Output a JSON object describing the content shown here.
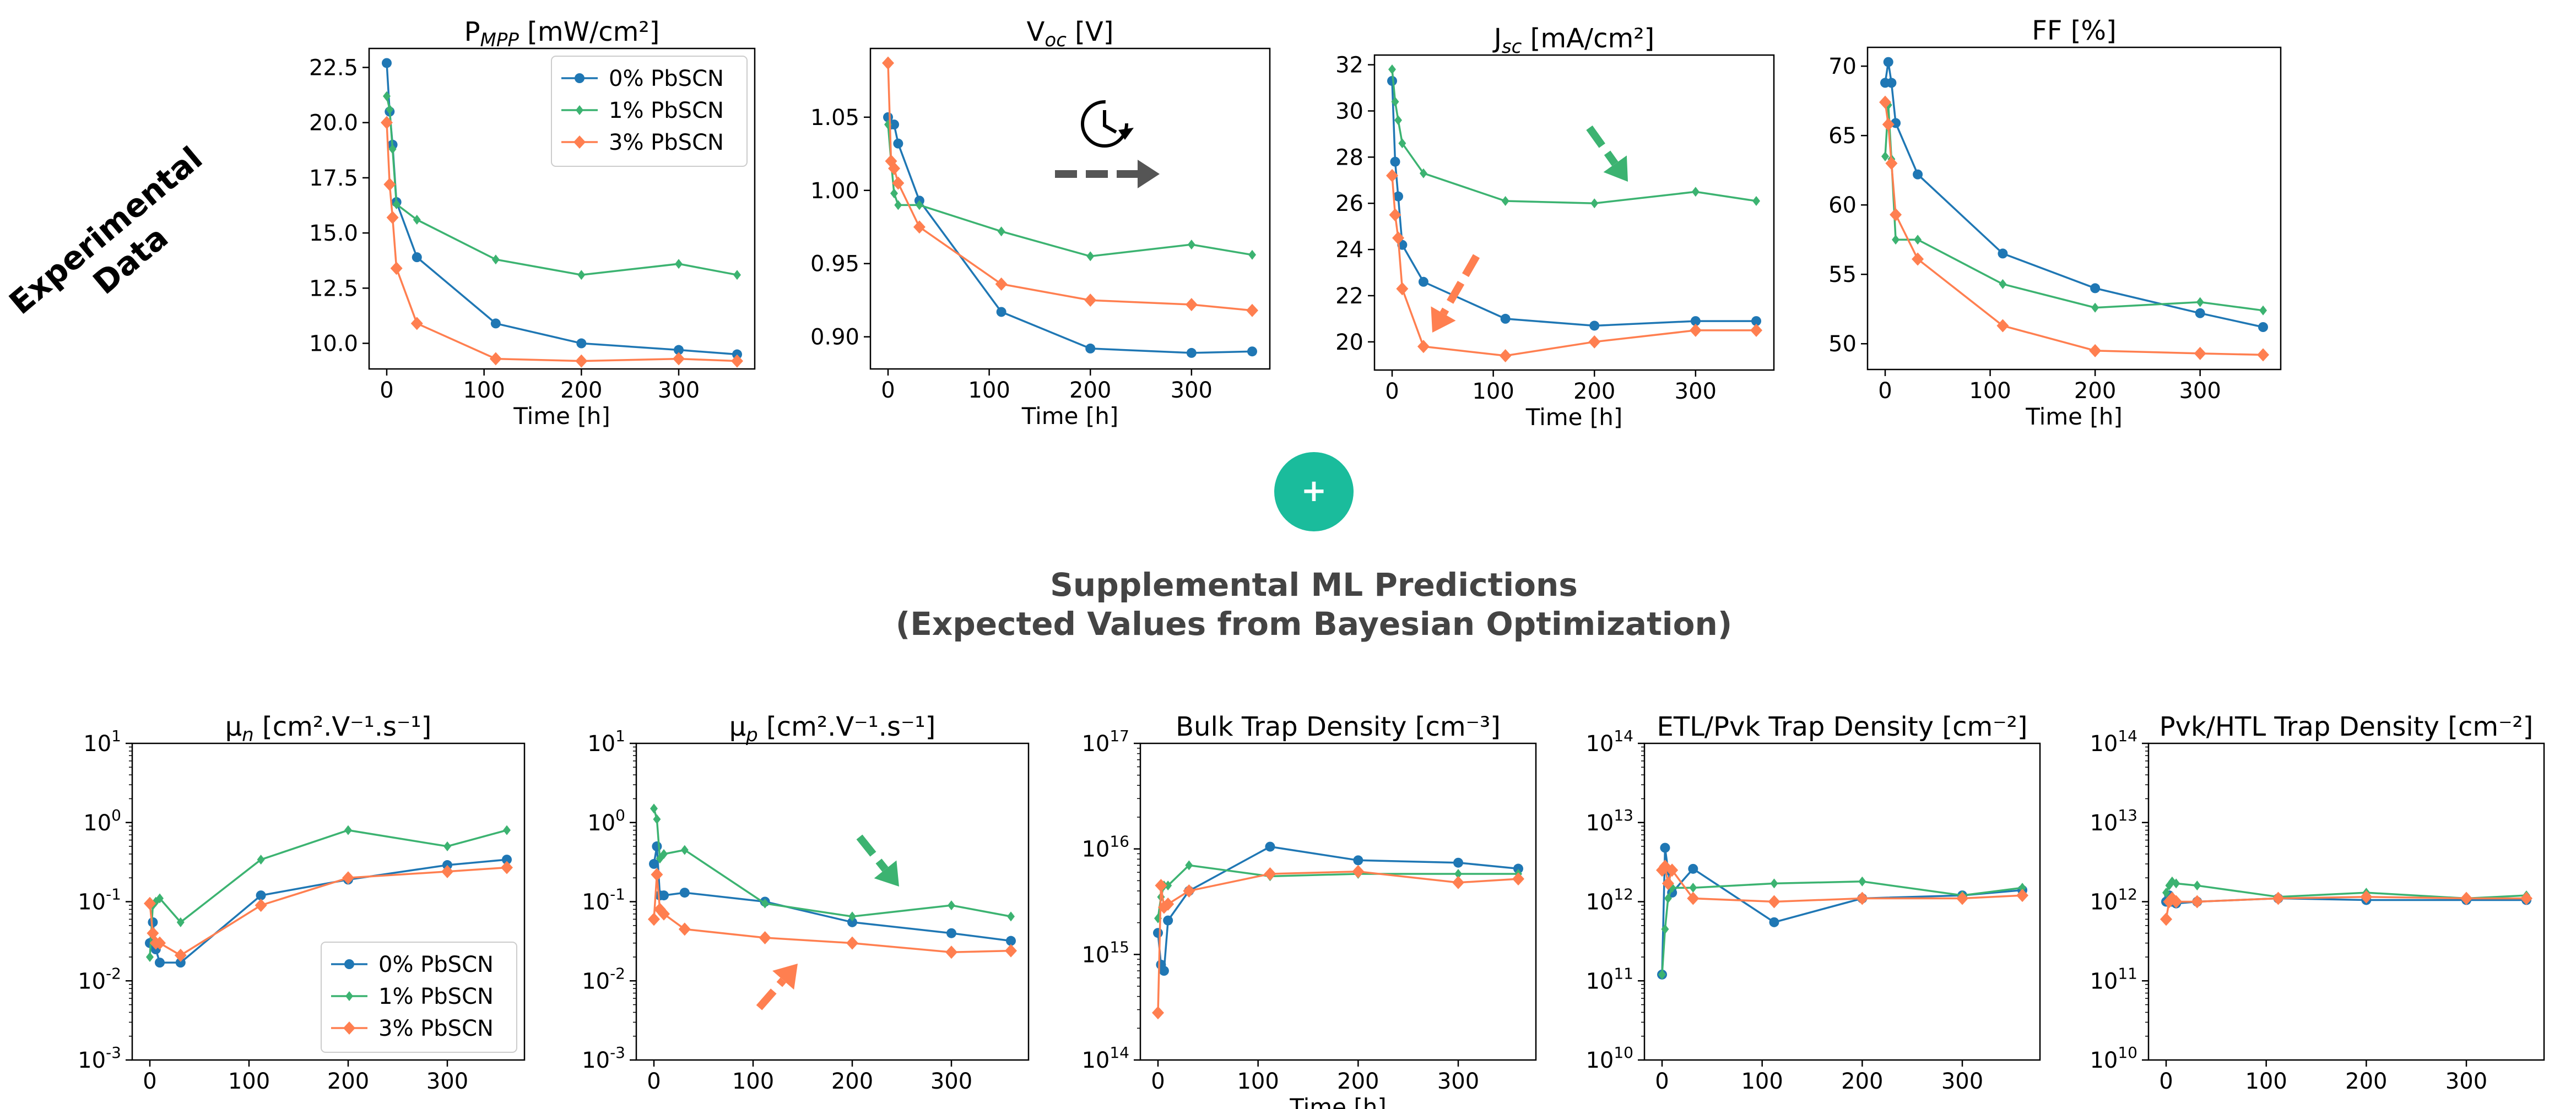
{
  "colors": {
    "s0": "#1f77b4",
    "s1": "#3cb371",
    "s2": "#ff7f50",
    "plus": "#1abc9c",
    "heading": "#444444"
  },
  "left_label": [
    "Experimental",
    "Data"
  ],
  "heading": {
    "line1": "Supplemental ML Predictions",
    "line2": "(Expected Values from Bayesian Optimization)"
  },
  "plus_symbol": "+",
  "legend": [
    "0% PbSCN",
    "1% PbSCN",
    "3% PbSCN"
  ],
  "icons": [
    "clock-icon",
    "dashed-arrow-right-icon",
    "trend-arrow-icon"
  ],
  "chart_data": [
    {
      "type": "line",
      "title": "P_MPP [mW/cm²]",
      "xlabel": "Time [h]",
      "ylabel": "",
      "xlim": [
        0,
        360
      ],
      "ylim": [
        9.5,
        22.7
      ],
      "yscale": "linear",
      "xticks": [
        0,
        100,
        200,
        300
      ],
      "yticks": [
        "10.0",
        "12.5",
        "15.0",
        "17.5",
        "20.0",
        "22.5"
      ],
      "legend_position": "upper right",
      "series": [
        {
          "name": "0% PbSCN",
          "x": [
            0,
            3,
            6,
            10,
            31,
            112,
            200,
            300,
            360
          ],
          "y": [
            22.7,
            20.5,
            19.0,
            16.4,
            13.9,
            10.9,
            10.0,
            9.7,
            9.5
          ]
        },
        {
          "name": "1% PbSCN",
          "x": [
            0,
            3,
            6,
            10,
            31,
            112,
            200,
            300,
            360
          ],
          "y": [
            21.2,
            20.6,
            18.8,
            16.3,
            15.6,
            13.8,
            13.1,
            13.6,
            13.1
          ]
        },
        {
          "name": "3% PbSCN",
          "x": [
            0,
            3,
            6,
            10,
            31,
            112,
            200,
            300,
            360
          ],
          "y": [
            20.0,
            17.2,
            15.7,
            13.4,
            10.9,
            9.3,
            9.2,
            9.3,
            9.2
          ]
        }
      ]
    },
    {
      "type": "line",
      "title": "V_oc [V]",
      "xlabel": "Time [h]",
      "ylabel": "",
      "xlim": [
        0,
        360
      ],
      "ylim": [
        0.888,
        1.087
      ],
      "yscale": "linear",
      "xticks": [
        0,
        100,
        200,
        300
      ],
      "yticks": [
        "0.90",
        "0.95",
        "1.00",
        "1.05"
      ],
      "series": [
        {
          "name": "0% PbSCN",
          "x": [
            0,
            3,
            6,
            10,
            31,
            112,
            200,
            300,
            360
          ],
          "y": [
            1.05,
            1.045,
            1.045,
            1.032,
            0.993,
            0.917,
            0.892,
            0.889,
            0.89
          ]
        },
        {
          "name": "1% PbSCN",
          "x": [
            0,
            3,
            6,
            10,
            31,
            112,
            200,
            300,
            360
          ],
          "y": [
            1.045,
            1.02,
            0.998,
            0.99,
            0.99,
            0.972,
            0.955,
            0.963,
            0.956
          ]
        },
        {
          "name": "3% PbSCN",
          "x": [
            0,
            3,
            6,
            10,
            31,
            112,
            200,
            300,
            360
          ],
          "y": [
            1.087,
            1.02,
            1.015,
            1.005,
            0.975,
            0.936,
            0.925,
            0.922,
            0.918
          ]
        }
      ]
    },
    {
      "type": "line",
      "title": "J_sc [mA/cm²]",
      "xlabel": "Time [h]",
      "ylabel": "",
      "xlim": [
        0,
        360
      ],
      "ylim": [
        19.4,
        31.8
      ],
      "yscale": "linear",
      "xticks": [
        0,
        100,
        200,
        300
      ],
      "yticks": [
        "20",
        "22",
        "24",
        "26",
        "28",
        "30",
        "32"
      ],
      "series": [
        {
          "name": "0% PbSCN",
          "x": [
            0,
            3,
            6,
            10,
            31,
            112,
            200,
            300,
            360
          ],
          "y": [
            31.3,
            27.8,
            26.3,
            24.2,
            22.6,
            21.0,
            20.7,
            20.9,
            20.9
          ]
        },
        {
          "name": "1% PbSCN",
          "x": [
            0,
            3,
            6,
            10,
            31,
            112,
            200,
            300,
            360
          ],
          "y": [
            31.8,
            30.4,
            29.6,
            28.6,
            27.3,
            26.1,
            26.0,
            26.5,
            26.1
          ]
        },
        {
          "name": "3% PbSCN",
          "x": [
            0,
            3,
            6,
            10,
            31,
            112,
            200,
            300,
            360
          ],
          "y": [
            27.2,
            25.5,
            24.5,
            22.3,
            19.8,
            19.4,
            20.0,
            20.5,
            20.5
          ]
        }
      ]
    },
    {
      "type": "line",
      "title": "FF [%]",
      "xlabel": "Time [h]",
      "ylabel": "",
      "xlim": [
        0,
        360
      ],
      "ylim": [
        49.2,
        70.3
      ],
      "yscale": "linear",
      "xticks": [
        0,
        100,
        200,
        300
      ],
      "yticks": [
        "50",
        "55",
        "60",
        "65",
        "70"
      ],
      "series": [
        {
          "name": "0% PbSCN",
          "x": [
            0,
            3,
            6,
            10,
            31,
            112,
            200,
            300,
            360
          ],
          "y": [
            68.8,
            70.3,
            68.8,
            65.9,
            62.2,
            56.5,
            54.0,
            52.2,
            51.2
          ]
        },
        {
          "name": "1% PbSCN",
          "x": [
            0,
            3,
            6,
            10,
            31,
            112,
            200,
            300,
            360
          ],
          "y": [
            63.5,
            67.2,
            63.3,
            57.5,
            57.5,
            54.3,
            52.6,
            53.0,
            52.4
          ]
        },
        {
          "name": "3% PbSCN",
          "x": [
            0,
            3,
            6,
            10,
            31,
            112,
            200,
            300,
            360
          ],
          "y": [
            67.4,
            65.8,
            63.0,
            59.3,
            56.1,
            51.3,
            49.5,
            49.3,
            49.2
          ]
        }
      ]
    },
    {
      "type": "line",
      "title": "μ_n [cm².V⁻¹.s⁻¹]",
      "xlabel": "",
      "ylabel": "",
      "xlim": [
        0,
        360
      ],
      "ylim": [
        0.001,
        10
      ],
      "yscale": "log",
      "xticks": [
        0,
        100,
        200,
        300
      ],
      "ytick_exponents": [
        1,
        0,
        -1,
        -2,
        -3
      ],
      "legend_position": "lower right",
      "series": [
        {
          "name": "0% PbSCN",
          "x": [
            0,
            3,
            6,
            10,
            31,
            112,
            200,
            300,
            360
          ],
          "y": [
            0.03,
            0.055,
            0.025,
            0.017,
            0.017,
            0.12,
            0.19,
            0.29,
            0.34
          ]
        },
        {
          "name": "1% PbSCN",
          "x": [
            0,
            3,
            6,
            10,
            31,
            112,
            200,
            300,
            360
          ],
          "y": [
            0.02,
            0.09,
            0.1,
            0.11,
            0.055,
            0.34,
            0.8,
            0.5,
            0.8
          ]
        },
        {
          "name": "3% PbSCN",
          "x": [
            0,
            3,
            6,
            10,
            31,
            112,
            200,
            300,
            360
          ],
          "y": [
            0.095,
            0.04,
            0.03,
            0.03,
            0.021,
            0.09,
            0.2,
            0.24,
            0.27
          ]
        }
      ]
    },
    {
      "type": "line",
      "title": "μ_p [cm².V⁻¹.s⁻¹]",
      "xlabel": "",
      "ylabel": "",
      "xlim": [
        0,
        360
      ],
      "ylim": [
        0.001,
        10
      ],
      "yscale": "log",
      "xticks": [
        0,
        100,
        200,
        300
      ],
      "ytick_exponents": [
        1,
        0,
        -1,
        -2,
        -3
      ],
      "series": [
        {
          "name": "0% PbSCN",
          "x": [
            0,
            3,
            6,
            10,
            31,
            112,
            200,
            300,
            360
          ],
          "y": [
            0.3,
            0.5,
            0.12,
            0.12,
            0.13,
            0.1,
            0.055,
            0.04,
            0.032
          ]
        },
        {
          "name": "1% PbSCN",
          "x": [
            0,
            3,
            6,
            10,
            31,
            112,
            200,
            300,
            360
          ],
          "y": [
            1.5,
            1.1,
            0.35,
            0.4,
            0.45,
            0.095,
            0.065,
            0.09,
            0.065
          ]
        },
        {
          "name": "3% PbSCN",
          "x": [
            0,
            3,
            6,
            10,
            31,
            112,
            200,
            300,
            360
          ],
          "y": [
            0.06,
            0.22,
            0.08,
            0.07,
            0.045,
            0.035,
            0.03,
            0.023,
            0.024
          ]
        }
      ]
    },
    {
      "type": "line",
      "title": "Bulk Trap Density [cm⁻³]",
      "xlabel": "Time [h]",
      "ylabel": "",
      "xlim": [
        0,
        360
      ],
      "ylim": [
        100000000000000.0,
        1e+17
      ],
      "yscale": "log",
      "xticks": [
        0,
        100,
        200,
        300
      ],
      "ytick_exponents": [
        17,
        16,
        15,
        14
      ],
      "series": [
        {
          "name": "0% PbSCN",
          "x": [
            0,
            3,
            6,
            10,
            31,
            112,
            200,
            300,
            360
          ],
          "y": [
            1600000000000000.0,
            800000000000000.0,
            700000000000000.0,
            2100000000000000.0,
            4000000000000000.0,
            1.05e+16,
            7800000000000000.0,
            7400000000000000.0,
            6500000000000000.0
          ]
        },
        {
          "name": "1% PbSCN",
          "x": [
            0,
            3,
            6,
            10,
            31,
            112,
            200,
            300,
            360
          ],
          "y": [
            2200000000000000.0,
            3500000000000000.0,
            4500000000000000.0,
            4500000000000000.0,
            7000000000000000.0,
            5500000000000000.0,
            5800000000000000.0,
            5800000000000000.0,
            5800000000000000.0
          ]
        },
        {
          "name": "3% PbSCN",
          "x": [
            0,
            3,
            6,
            10,
            31,
            112,
            200,
            300,
            360
          ],
          "y": [
            280000000000000.0,
            4500000000000000.0,
            2800000000000000.0,
            3000000000000000.0,
            4000000000000000.0,
            5800000000000000.0,
            6100000000000000.0,
            4800000000000000.0,
            5200000000000000.0
          ]
        }
      ]
    },
    {
      "type": "line",
      "title": "ETL/Pvk Trap Density [cm⁻²]",
      "xlabel": "",
      "ylabel": "",
      "xlim": [
        0,
        360
      ],
      "ylim": [
        10000000000.0,
        100000000000000.0
      ],
      "yscale": "log",
      "xticks": [
        0,
        100,
        200,
        300
      ],
      "ytick_exponents": [
        14,
        13,
        12,
        11,
        10
      ],
      "series": [
        {
          "name": "0% PbSCN",
          "x": [
            0,
            3,
            6,
            10,
            31,
            112,
            200,
            300,
            360
          ],
          "y": [
            120000000000.0,
            4800000000000.0,
            2500000000000.0,
            1300000000000.0,
            2600000000000.0,
            550000000000.0,
            1100000000000.0,
            1200000000000.0,
            1400000000000.0
          ]
        },
        {
          "name": "1% PbSCN",
          "x": [
            0,
            3,
            6,
            10,
            31,
            112,
            200,
            300,
            360
          ],
          "y": [
            120000000000.0,
            450000000000.0,
            1100000000000.0,
            1500000000000.0,
            1500000000000.0,
            1700000000000.0,
            1800000000000.0,
            1200000000000.0,
            1500000000000.0
          ]
        },
        {
          "name": "3% PbSCN",
          "x": [
            0,
            3,
            6,
            10,
            31,
            112,
            200,
            300,
            360
          ],
          "y": [
            2500000000000.0,
            2800000000000.0,
            1700000000000.0,
            2500000000000.0,
            1100000000000.0,
            1000000000000.0,
            1100000000000.0,
            1100000000000.0,
            1200000000000.0
          ]
        }
      ]
    },
    {
      "type": "line",
      "title": "Pvk/HTL Trap Density [cm⁻²]",
      "xlabel": "",
      "ylabel": "",
      "xlim": [
        0,
        360
      ],
      "ylim": [
        10000000000.0,
        100000000000000.0
      ],
      "yscale": "log",
      "xticks": [
        0,
        100,
        200,
        300
      ],
      "ytick_exponents": [
        14,
        13,
        12,
        11,
        10
      ],
      "series": [
        {
          "name": "0% PbSCN",
          "x": [
            0,
            3,
            6,
            10,
            31,
            112,
            200,
            300,
            360
          ],
          "y": [
            1000000000000.0,
            1200000000000.0,
            1000000000000.0,
            950000000000.0,
            1000000000000.0,
            1100000000000.0,
            1050000000000.0,
            1050000000000.0,
            1050000000000.0
          ]
        },
        {
          "name": "1% PbSCN",
          "x": [
            0,
            3,
            6,
            10,
            31,
            112,
            200,
            300,
            360
          ],
          "y": [
            1300000000000.0,
            1600000000000.0,
            1800000000000.0,
            1700000000000.0,
            1600000000000.0,
            1150000000000.0,
            1300000000000.0,
            1100000000000.0,
            1200000000000.0
          ]
        },
        {
          "name": "3% PbSCN",
          "x": [
            0,
            3,
            6,
            10,
            31,
            112,
            200,
            300,
            360
          ],
          "y": [
            600000000000.0,
            1000000000000.0,
            1100000000000.0,
            1000000000000.0,
            1000000000000.0,
            1100000000000.0,
            1150000000000.0,
            1100000000000.0,
            1100000000000.0
          ]
        }
      ]
    }
  ]
}
